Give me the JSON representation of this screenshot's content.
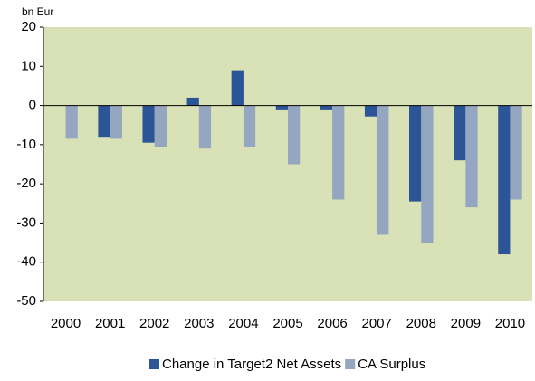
{
  "chart_data": {
    "type": "bar",
    "ylabel": "bn Eur",
    "categories": [
      "2000",
      "2001",
      "2002",
      "2003",
      "2004",
      "2005",
      "2006",
      "2007",
      "2008",
      "2009",
      "2010"
    ],
    "series": [
      {
        "name": "Change in Target2 Net Assets",
        "color": "#2b5597",
        "values": [
          null,
          -8,
          -9.5,
          2,
          9,
          -1,
          -1,
          -2.8,
          -24.5,
          -14,
          -38
        ]
      },
      {
        "name": "CA Surplus",
        "color": "#95a6c0",
        "values": [
          -8.5,
          -8.5,
          -10.5,
          -11,
          -10.5,
          -15,
          -24,
          -33,
          -35,
          -26,
          -24
        ]
      }
    ],
    "ylim": [
      -50,
      20
    ],
    "yticks": [
      -50,
      -40,
      -30,
      -20,
      -10,
      0,
      10,
      20
    ],
    "plot_background": "#d9e2b6",
    "legend": "bottom"
  }
}
